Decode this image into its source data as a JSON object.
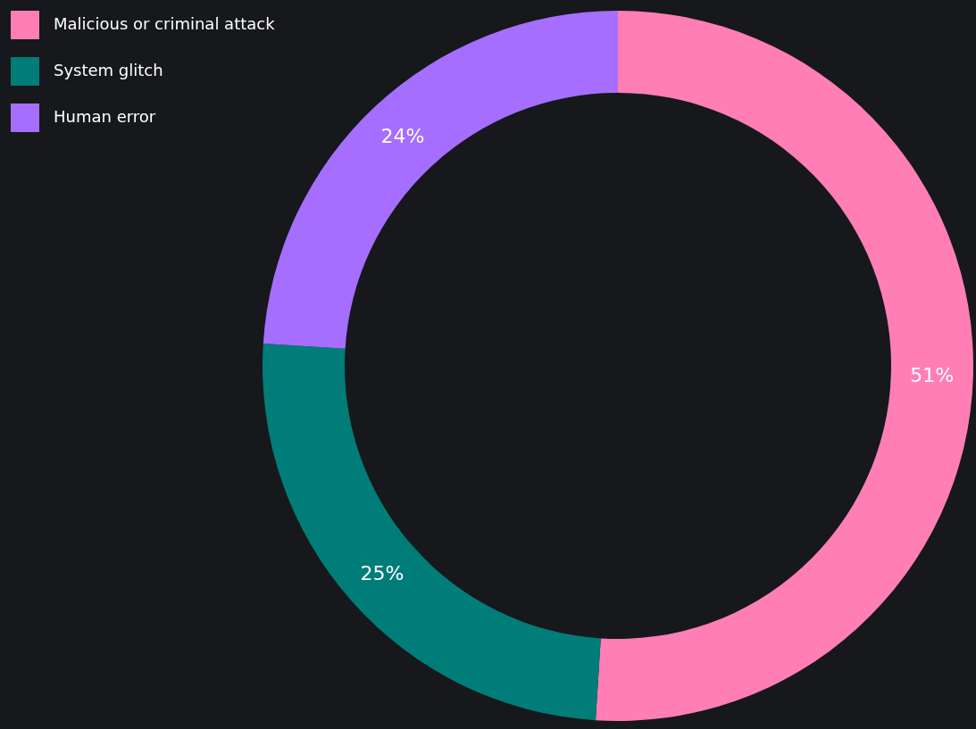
{
  "chart_data": {
    "type": "donut",
    "categories": [
      "Malicious or criminal attack",
      "System glitch",
      "Human error"
    ],
    "values": [
      51,
      25,
      24
    ],
    "colors": [
      "#ff7eb6",
      "#007d79",
      "#a56eff"
    ],
    "value_labels": [
      "51%",
      "25%",
      "24%"
    ],
    "legend": "top left"
  }
}
